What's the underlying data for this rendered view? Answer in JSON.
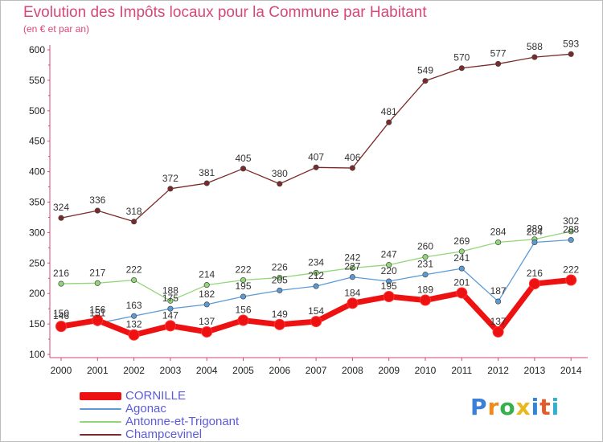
{
  "chart_data": {
    "type": "line",
    "title": "Evolution des Impôts locaux pour la Commune par Habitant",
    "subtitle": "(en € et par an)",
    "xlabel": "",
    "ylabel": "",
    "categories": [
      "2000",
      "2001",
      "2002",
      "2003",
      "2004",
      "2005",
      "2006",
      "2007",
      "2008",
      "2009",
      "2010",
      "2011",
      "2012",
      "2013",
      "2014"
    ],
    "ylim": [
      100,
      600
    ],
    "yticks": [
      100,
      150,
      200,
      250,
      300,
      350,
      400,
      450,
      500,
      550,
      600
    ],
    "grid": false,
    "legend_position": "bottom-left",
    "series": [
      {
        "name": "CORNILLE",
        "color": "#ee1111",
        "values": [
          146,
          156,
          132,
          147,
          137,
          156,
          149,
          154,
          184,
          195,
          189,
          201,
          137,
          216,
          222
        ]
      },
      {
        "name": "Agonac",
        "color": "#5b9bd5",
        "values": [
          150,
          151,
          163,
          175,
          182,
          195,
          205,
          212,
          227,
          220,
          231,
          241,
          187,
          284,
          288
        ]
      },
      {
        "name": "Antonne-et-Trigonant",
        "color": "#92d67a",
        "values": [
          216,
          217,
          222,
          188,
          214,
          222,
          226,
          234,
          242,
          247,
          260,
          269,
          284,
          289,
          302
        ]
      },
      {
        "name": "Champcevinel",
        "color": "#7a2a2a",
        "values": [
          324,
          336,
          318,
          372,
          381,
          405,
          380,
          407,
          406,
          481,
          549,
          570,
          577,
          588,
          593
        ]
      }
    ]
  },
  "logo": {
    "letters": [
      "P",
      "r",
      "o",
      "x",
      "i",
      "t",
      "i"
    ],
    "colors": [
      "#3b7fd9",
      "#f08a1c",
      "#35b04a",
      "#e8b81c",
      "#2f86d8",
      "#e25b2a",
      "#2fb0d0"
    ]
  }
}
